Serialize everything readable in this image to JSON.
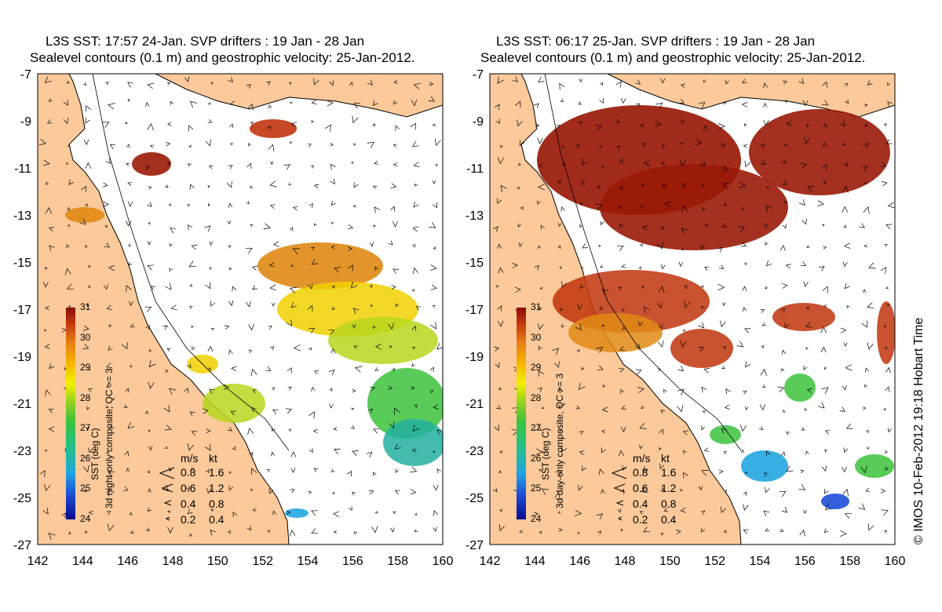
{
  "panels": [
    {
      "title_line1": "L3S SST: 17:57 24-Jan. SVP drifters : 19 Jan - 28 Jan",
      "title_line2": "Sealevel contours (0.1 m) and geostrophic velocity: 25-Jan-2012.",
      "colorbar_label": "SST (deg C)",
      "composite_label": "3d night-only composite, QC >= 3"
    },
    {
      "title_line1": "L3S SST: 06:17 25-Jan. SVP drifters : 19 Jan - 28 Jan",
      "title_line2": "Sealevel contours (0.1 m) and geostrophic velocity: 25-Jan-2012.",
      "colorbar_label": "SST (deg C)",
      "composite_label": "3d day-only composite, QC >= 3"
    }
  ],
  "axes": {
    "x_ticks": [
      "142",
      "144",
      "146",
      "148",
      "150",
      "152",
      "154",
      "156",
      "158",
      "160"
    ],
    "y_ticks": [
      "-7",
      "-9",
      "-11",
      "-13",
      "-15",
      "-17",
      "-19",
      "-21",
      "-23",
      "-25",
      "-27"
    ]
  },
  "colorbar": {
    "ticks": [
      "31",
      "30",
      "29",
      "28",
      "27",
      "26",
      "25",
      "24"
    ],
    "min": 24,
    "max": 31
  },
  "velocity_legend": {
    "header_ms": "m/s",
    "header_kt": "kt",
    "rows": [
      {
        "ms": "0.8",
        "kt": "1.6"
      },
      {
        "ms": "0.6",
        "kt": "1.2"
      },
      {
        "ms": "0.4",
        "kt": "0.8"
      },
      {
        "ms": "0.2",
        "kt": "0.4"
      }
    ]
  },
  "credit": "© IMOS 10-Feb-2012 19:18 Hobart Time",
  "colors": {
    "land": "#fbc99a",
    "ocean": "#ffffff",
    "coast": "#000000",
    "sst_hot": "#9a1a08",
    "sst_warm": "#e08a14",
    "sst_mid": "#f0d000",
    "sst_cool": "#3cc23c",
    "sst_cold": "#22b0a0"
  }
}
